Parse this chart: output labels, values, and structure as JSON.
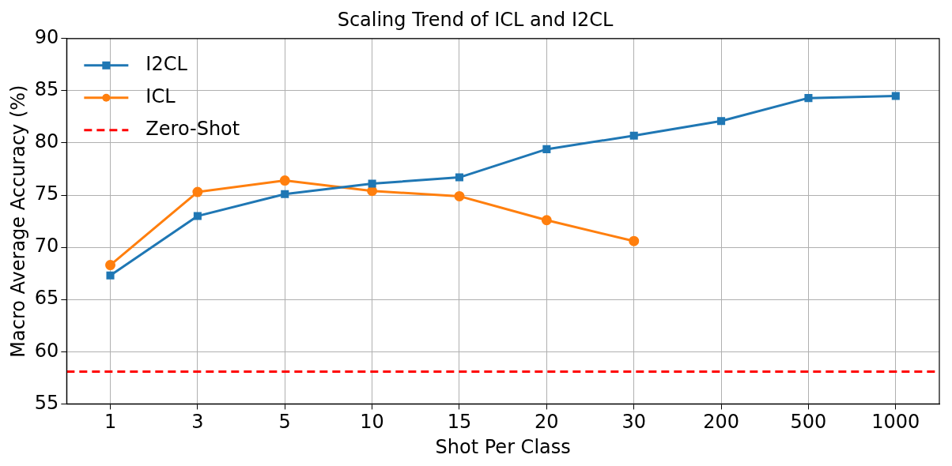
{
  "chart_data": {
    "type": "line",
    "title": "Scaling Trend of ICL and I2CL",
    "xlabel": "Shot Per Class",
    "ylabel": "Macro Average Accuracy (%)",
    "categories": [
      "1",
      "3",
      "5",
      "10",
      "15",
      "20",
      "30",
      "200",
      "500",
      "1000"
    ],
    "series": [
      {
        "name": "I2CL",
        "color": "#1f77b4",
        "marker": "square",
        "values": [
          67.3,
          73.0,
          75.1,
          76.1,
          76.7,
          79.4,
          80.7,
          82.1,
          84.3,
          84.5
        ]
      },
      {
        "name": "ICL",
        "color": "#ff7f0e",
        "marker": "circle",
        "values": [
          68.3,
          75.3,
          76.4,
          75.4,
          74.9,
          72.6,
          70.6,
          null,
          null,
          null
        ]
      }
    ],
    "ref_lines": [
      {
        "axis": "y",
        "value": 58.1,
        "label": "Zero-Shot",
        "color": "#ff0000",
        "line_style": "dashed"
      }
    ],
    "ylim": [
      55,
      90
    ],
    "yticks": [
      55,
      60,
      65,
      70,
      75,
      80,
      85,
      90
    ],
    "grid": true,
    "legend": "top left",
    "line_style": "solid"
  }
}
